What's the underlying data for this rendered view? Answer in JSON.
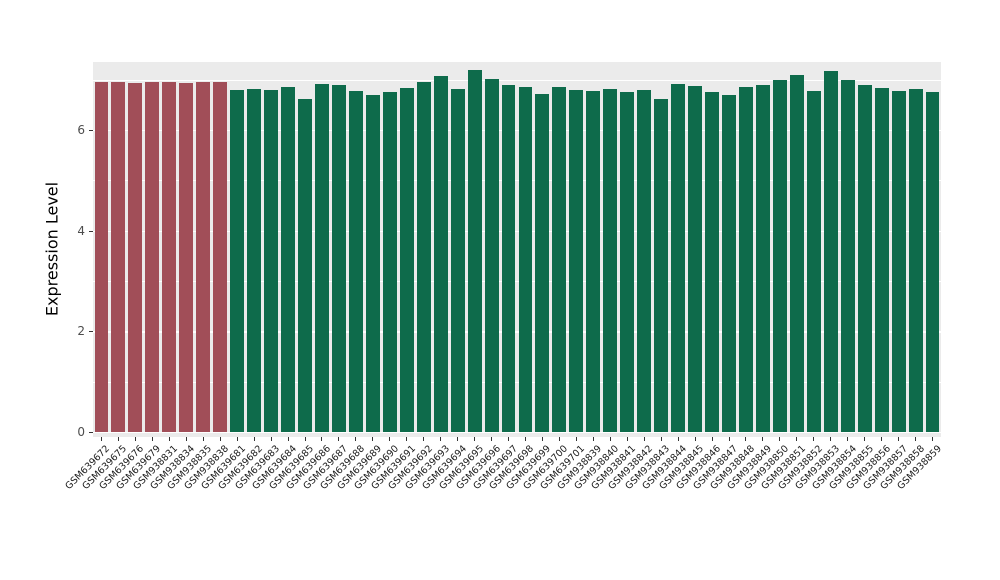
{
  "chart_data": {
    "type": "bar",
    "title": "",
    "xlabel": "",
    "ylabel": "Expression Level",
    "ylim": [
      0,
      7.35
    ],
    "yticks": [
      0,
      2,
      4,
      6
    ],
    "grid": {
      "major": [
        0,
        2,
        4,
        6
      ],
      "minor": [
        1,
        3,
        5,
        7
      ]
    },
    "legend": "none",
    "panel_bg": "#EBEBEB",
    "grid_color": "#FFFFFF",
    "colors": {
      "group1": "#A14E58",
      "group2": "#0E6B4B"
    },
    "group1_count": 8,
    "categories": [
      "GSM639672",
      "GSM639675",
      "GSM639676",
      "GSM639679",
      "GSM938831",
      "GSM938834",
      "GSM938835",
      "GSM938838",
      "GSM639681",
      "GSM639682",
      "GSM639683",
      "GSM639684",
      "GSM639685",
      "GSM639686",
      "GSM639687",
      "GSM639688",
      "GSM639689",
      "GSM639690",
      "GSM639691",
      "GSM639692",
      "GSM639693",
      "GSM639694",
      "GSM639695",
      "GSM639696",
      "GSM639697",
      "GSM639698",
      "GSM639699",
      "GSM639700",
      "GSM639701",
      "GSM938839",
      "GSM938840",
      "GSM938841",
      "GSM938842",
      "GSM938843",
      "GSM938844",
      "GSM938845",
      "GSM938846",
      "GSM938847",
      "GSM938848",
      "GSM938849",
      "GSM938850",
      "GSM938851",
      "GSM938852",
      "GSM938853",
      "GSM938854",
      "GSM938855",
      "GSM938856",
      "GSM938857",
      "GSM938858",
      "GSM938859"
    ],
    "values": [
      6.95,
      6.95,
      6.94,
      6.96,
      6.95,
      6.94,
      6.96,
      6.95,
      6.8,
      6.82,
      6.79,
      6.86,
      6.62,
      6.92,
      6.89,
      6.77,
      6.7,
      6.76,
      6.84,
      6.95,
      7.08,
      6.82,
      7.2,
      7.02,
      6.9,
      6.86,
      6.72,
      6.85,
      6.8,
      6.78,
      6.82,
      6.76,
      6.8,
      6.62,
      6.92,
      6.88,
      6.76,
      6.7,
      6.86,
      6.9,
      7.0,
      7.1,
      6.78,
      7.18,
      7.0,
      6.9,
      6.84,
      6.78,
      6.82,
      6.76
    ]
  }
}
